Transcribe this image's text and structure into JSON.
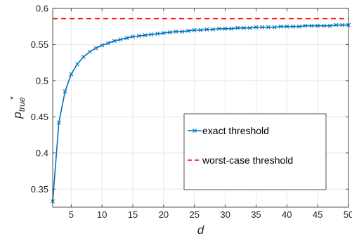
{
  "chart_data": {
    "type": "line",
    "xlabel": "d",
    "ylabel_main": "p",
    "ylabel_sub": "true",
    "ylabel_sup": "*",
    "xlim": [
      2,
      50
    ],
    "ylim": [
      0.325,
      0.6
    ],
    "xticks": [
      5,
      10,
      15,
      20,
      25,
      30,
      35,
      40,
      45,
      50
    ],
    "yticks": [
      0.35,
      0.4,
      0.45,
      0.5,
      0.55,
      0.6
    ],
    "ytick_labels": [
      "0.35",
      "0.4",
      "0.45",
      "0.5",
      "0.55",
      "0.6"
    ],
    "grid": true,
    "legend_position": "lower-right",
    "series": [
      {
        "name": "exact threshold",
        "color": "#0072BD",
        "marker": "x",
        "line_style": "solid",
        "x": [
          2,
          3,
          4,
          5,
          6,
          7,
          8,
          9,
          10,
          11,
          12,
          13,
          14,
          15,
          16,
          17,
          18,
          19,
          20,
          21,
          22,
          23,
          24,
          25,
          26,
          27,
          28,
          29,
          30,
          31,
          32,
          33,
          34,
          35,
          36,
          37,
          38,
          39,
          40,
          41,
          42,
          43,
          44,
          45,
          46,
          47,
          48,
          49,
          50
        ],
        "y": [
          0.333,
          0.442,
          0.485,
          0.509,
          0.523,
          0.533,
          0.54,
          0.545,
          0.549,
          0.552,
          0.555,
          0.557,
          0.559,
          0.561,
          0.562,
          0.563,
          0.564,
          0.565,
          0.566,
          0.567,
          0.568,
          0.568,
          0.569,
          0.57,
          0.57,
          0.571,
          0.571,
          0.572,
          0.572,
          0.572,
          0.573,
          0.573,
          0.573,
          0.574,
          0.574,
          0.574,
          0.574,
          0.575,
          0.575,
          0.575,
          0.575,
          0.576,
          0.576,
          0.576,
          0.576,
          0.576,
          0.577,
          0.577,
          0.577
        ]
      },
      {
        "name": "worst-case threshold",
        "color": "#FF0000",
        "marker": "none",
        "line_style": "dashed",
        "x": [
          2,
          50
        ],
        "y": [
          0.5858,
          0.5858
        ]
      }
    ]
  }
}
